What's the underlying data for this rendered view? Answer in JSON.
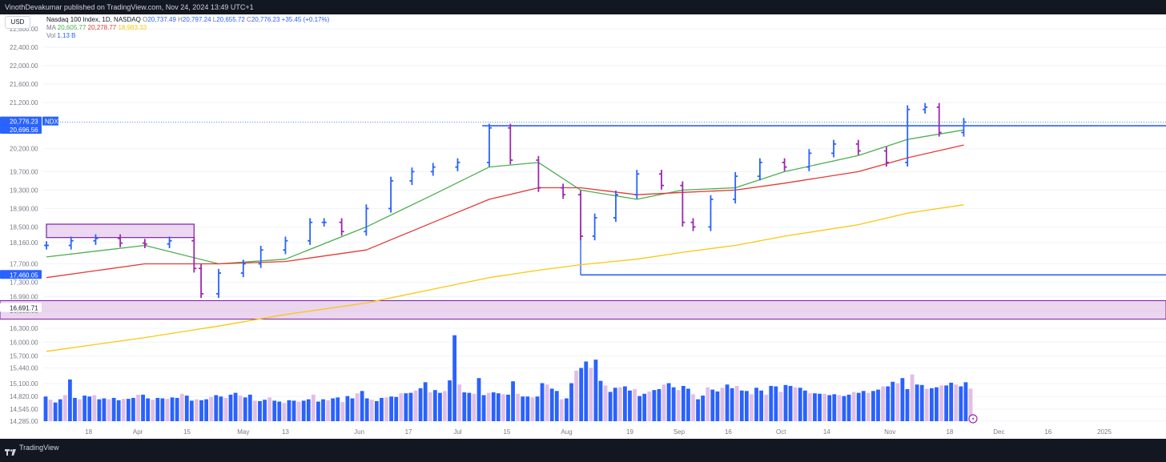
{
  "header": {
    "published_text": "VinothDevakumar published on TradingView.com, Nov 24, 2024 13:49 UTC+1"
  },
  "footer": {
    "brand": "TradingView"
  },
  "legend": {
    "currency": "USD",
    "symbol": "Nasdaq 100 Index, 1D, NASDAQ",
    "open_label": "O",
    "open": "20,737.49",
    "high_label": "H",
    "high": "20,797.24",
    "low_label": "L",
    "low": "20,655.72",
    "close_label": "C",
    "close": "20,776.23",
    "change": "+35.45 (+0.17%)",
    "ma_label": "MA",
    "ma1": "20,605.77",
    "ma2": "20,278.77",
    "ma3": "18,983.33",
    "vol_label": "Vol",
    "vol": "1.13 B"
  },
  "price_axis": {
    "ticks": [
      "22,800.00",
      "22,400.00",
      "22,000.00",
      "21,600.00",
      "21,200.00",
      "20,200.00",
      "19,700.00",
      "19,300.00",
      "18,900.00",
      "18,500.00",
      "18,160.00",
      "17,700.00",
      "17,300.00",
      "16,990.00",
      "16,680.00",
      "16,300.00",
      "16,000.00",
      "15,700.00",
      "15,440.00",
      "15,100.00",
      "14,820.00",
      "14,545.00",
      "14,285.00"
    ],
    "price_label": "20,776.23",
    "symbol_tag": "NDX",
    "prev_label": "20,696.56",
    "support_label": "17,460.05",
    "zone_label": "16,691.71"
  },
  "time_axis": {
    "labels": [
      "18",
      "Apr",
      "15",
      "May",
      "13",
      "Jun",
      "17",
      "Jul",
      "15",
      "Aug",
      "19",
      "Sep",
      "16",
      "Oct",
      "14",
      "Nov",
      "18",
      "Dec",
      "16",
      "2025"
    ]
  },
  "chart_data": {
    "type": "line",
    "title": "Nasdaq 100 Index, 1D, NASDAQ",
    "x_range": [
      "2024-03-06",
      "2025-01-01"
    ],
    "ylim": [
      16000,
      22800
    ],
    "grid": true,
    "close_series": {
      "name": "NDX",
      "x": [
        "Mar 6",
        "Mar 13",
        "Mar 20",
        "Mar 27",
        "Apr 3",
        "Apr 10",
        "Apr 17",
        "Apr 19",
        "Apr 24",
        "May 1",
        "May 6",
        "May 13",
        "May 20",
        "May 24",
        "May 29",
        "Jun 5",
        "Jun 12",
        "Jun 18",
        "Jun 24",
        "Jul 1",
        "Jul 10",
        "Jul 16",
        "Jul 24",
        "Jul 31",
        "Aug 5",
        "Aug 9",
        "Aug 15",
        "Aug 21",
        "Aug 28",
        "Sep 3",
        "Sep 6",
        "Sep 11",
        "Sep 18",
        "Sep 25",
        "Oct 2",
        "Oct 9",
        "Oct 16",
        "Oct 23",
        "Oct 31",
        "Nov 6",
        "Nov 11",
        "Nov 15",
        "Nov 22"
      ],
      "values": [
        18100,
        18200,
        18250,
        18150,
        18130,
        18200,
        17600,
        17050,
        17500,
        17700,
        18000,
        18200,
        18600,
        18600,
        18400,
        18900,
        19500,
        19700,
        19800,
        19900,
        20650,
        19950,
        19350,
        19200,
        18300,
        18700,
        19200,
        19650,
        19400,
        18600,
        18500,
        19100,
        19600,
        19900,
        19800,
        20100,
        20300,
        20150,
        19900,
        21050,
        21100,
        20550,
        20776
      ]
    },
    "moving_averages": [
      {
        "name": "MA",
        "value": 20605.77,
        "color": "#4caf50",
        "x": [
          "Mar 6",
          "Apr 3",
          "Apr 24",
          "May 13",
          "Jun 5",
          "Jun 24",
          "Jul 10",
          "Jul 24",
          "Aug 5",
          "Aug 21",
          "Sep 3",
          "Sep 18",
          "Oct 2",
          "Oct 23",
          "Nov 6",
          "Nov 22"
        ],
        "values": [
          17850,
          18100,
          17700,
          17800,
          18500,
          19200,
          19800,
          19900,
          19300,
          19100,
          19300,
          19350,
          19700,
          20050,
          20400,
          20606
        ]
      },
      {
        "name": "MA",
        "value": 20278.77,
        "color": "#e53935",
        "x": [
          "Mar 6",
          "Apr 3",
          "Apr 24",
          "May 13",
          "Jun 5",
          "Jun 24",
          "Jul 10",
          "Jul 24",
          "Aug 5",
          "Aug 21",
          "Sep 3",
          "Sep 18",
          "Oct 2",
          "Oct 23",
          "Nov 6",
          "Nov 22"
        ],
        "values": [
          17400,
          17700,
          17700,
          17750,
          18000,
          18600,
          19100,
          19350,
          19350,
          19200,
          19250,
          19300,
          19450,
          19700,
          20000,
          20279
        ]
      },
      {
        "name": "MA",
        "value": 18983.33,
        "color": "#f9c80e",
        "x": [
          "Mar 6",
          "Apr 3",
          "Apr 24",
          "May 13",
          "Jun 5",
          "Jun 24",
          "Jul 10",
          "Jul 24",
          "Aug 5",
          "Aug 21",
          "Sep 3",
          "Sep 18",
          "Oct 2",
          "Oct 23",
          "Nov 6",
          "Nov 22"
        ],
        "values": [
          15800,
          16100,
          16350,
          16600,
          16850,
          17150,
          17400,
          17560,
          17680,
          17800,
          17950,
          18100,
          18300,
          18550,
          18800,
          18983
        ]
      }
    ],
    "annotations": {
      "resistance": 20696.56,
      "support": 17460.05,
      "demand_zone": [
        16500,
        16900
      ],
      "supply_box": [
        18270,
        18560
      ]
    },
    "volume": {
      "name": "Vol",
      "ylim": [
        14000,
        16300
      ],
      "values": [
        14820,
        14750,
        14690,
        14760,
        14850,
        15190,
        14790,
        14760,
        14840,
        14820,
        14850,
        14760,
        14780,
        14760,
        14790,
        14740,
        14770,
        14770,
        14790,
        14860,
        14860,
        14780,
        14750,
        14790,
        14780,
        14770,
        14800,
        14790,
        14880,
        14840,
        14730,
        14760,
        14740,
        14760,
        14810,
        14850,
        14820,
        14790,
        14860,
        14900,
        14840,
        14800,
        14860,
        14730,
        14720,
        14750,
        14800,
        14730,
        14710,
        14680,
        14740,
        14730,
        14710,
        14730,
        14760,
        14860,
        14710,
        14760,
        14740,
        14780,
        14800,
        14700,
        14830,
        14780,
        14890,
        14940,
        14780,
        14750,
        14720,
        14790,
        14800,
        14820,
        14810,
        14890,
        14890,
        14900,
        14950,
        15000,
        15130,
        14910,
        14960,
        14900,
        14940,
        15170,
        16150,
        15080,
        14910,
        14900,
        14880,
        15220,
        14850,
        14900,
        14910,
        14890,
        14870,
        14860,
        15150,
        14880,
        14820,
        14820,
        14800,
        14820,
        15110,
        15080,
        14990,
        14940,
        14760,
        14780,
        15110,
        15380,
        15440,
        15580,
        15440,
        15620,
        15160,
        15060,
        14920,
        15010,
        15020,
        15040,
        14950,
        14980,
        14830,
        14880,
        14930,
        14960,
        14980,
        15080,
        15110,
        15020,
        14960,
        15050,
        14990,
        14870,
        14760,
        14840,
        15020,
        14970,
        14930,
        15010,
        15080,
        15000,
        15050,
        14950,
        14940,
        14870,
        15010,
        14950,
        14860,
        15050,
        15040,
        14920,
        15070,
        15050,
        15020,
        15010,
        14950,
        14890,
        14890,
        14880,
        14880,
        14850,
        14870,
        14850,
        14830,
        14860,
        14920,
        14900,
        14940,
        14900,
        14940,
        14970,
        15040,
        15040,
        15140,
        15110,
        15220,
        14980,
        15300,
        15080,
        15070,
        14990,
        15000,
        15020,
        15060,
        15060,
        15120,
        15080,
        15040,
        15130,
        14990
      ]
    }
  }
}
